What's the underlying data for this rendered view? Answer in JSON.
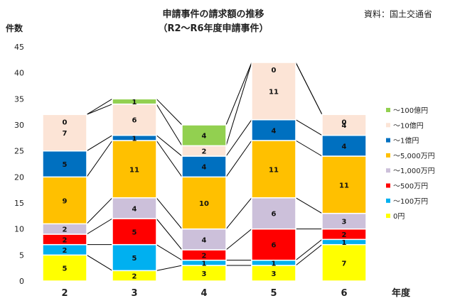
{
  "header": {
    "title_line1": "申請事件の請求額の推移",
    "title_line2": "（R2～R6年度申請事件）",
    "source": "資料：国土交通省"
  },
  "chart_data": {
    "type": "bar",
    "stacked": true,
    "title": "申請事件の請求額の推移",
    "subtitle": "（R2～R6年度申請事件）",
    "ylabel": "件数",
    "xlabel": "年度",
    "categories": [
      "2",
      "3",
      "4",
      "5",
      "6"
    ],
    "ylim": [
      0,
      45
    ],
    "yticks": [
      0,
      5,
      10,
      15,
      20,
      25,
      30,
      35,
      40,
      45
    ],
    "grid": false,
    "legend_position": "right",
    "series": [
      {
        "name": "0円",
        "color": "#FFFF00",
        "values": [
          5,
          2,
          3,
          3,
          7
        ]
      },
      {
        "name": "～100万円",
        "color": "#00B0F0",
        "values": [
          2,
          5,
          1,
          1,
          1
        ]
      },
      {
        "name": "～500万円",
        "color": "#FF0000",
        "values": [
          2,
          5,
          2,
          6,
          2
        ]
      },
      {
        "name": "～1,000万円",
        "color": "#CCC0DA",
        "values": [
          2,
          4,
          4,
          6,
          3
        ]
      },
      {
        "name": "～5,000万円",
        "color": "#FFC000",
        "values": [
          9,
          11,
          10,
          11,
          11
        ]
      },
      {
        "name": "～1億円",
        "color": "#0070C0",
        "values": [
          5,
          1,
          4,
          4,
          4
        ]
      },
      {
        "name": "～10億円",
        "color": "#FCE4D6",
        "values": [
          7,
          6,
          2,
          11,
          4
        ]
      },
      {
        "name": "～100億円",
        "color": "#92D050",
        "values": [
          0,
          1,
          4,
          0,
          0
        ]
      }
    ],
    "totals": [
      32,
      35,
      30,
      42,
      32
    ]
  }
}
